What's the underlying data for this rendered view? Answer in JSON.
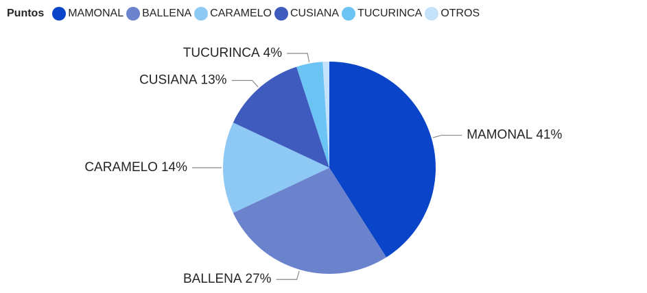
{
  "chart_data": {
    "type": "pie",
    "legend_title": "Puntos",
    "legend_position": "top-left",
    "categories": [
      "MAMONAL",
      "BALLENA",
      "CARAMELO",
      "CUSIANA",
      "TUCURINCA",
      "OTROS"
    ],
    "values": [
      41,
      27,
      14,
      13,
      4,
      1
    ],
    "value_labels": [
      "41%",
      "27%",
      "14%",
      "13%",
      "4%",
      null
    ],
    "colors": [
      "#0a44c8",
      "#6b83cc",
      "#8ec8f5",
      "#3f5bbd",
      "#6cc4f5",
      "#c5e2fb"
    ]
  }
}
